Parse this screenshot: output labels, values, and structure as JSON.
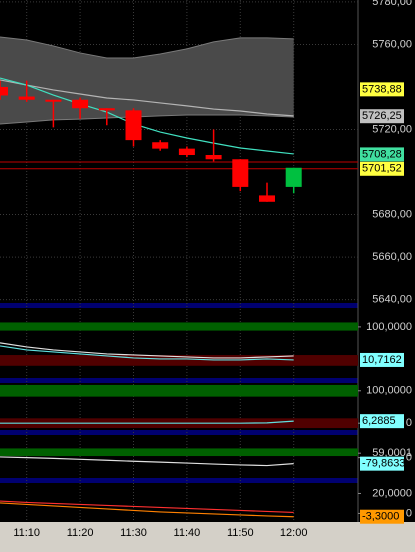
{
  "chart_data": [
    {
      "type": "candlestick",
      "categories": [
        null,
        "11:10",
        null,
        "11:20",
        null,
        "11:30",
        null,
        "11:40",
        null,
        "11:50",
        null,
        "12:00"
      ],
      "open": [
        5740,
        5735.5,
        5734,
        5734,
        5730,
        5729,
        5714,
        5711,
        5708,
        5706,
        5689,
        5693
      ],
      "high": [
        5743,
        5743,
        5734,
        5735,
        5730,
        5730,
        5715,
        5712,
        5720,
        5706,
        5695,
        5702
      ],
      "low": [
        5734,
        5733,
        5721,
        5725,
        5722,
        5712,
        5710,
        5707,
        5705,
        5691,
        5686,
        5690
      ],
      "close": [
        5736,
        5734,
        5733.5,
        5730,
        5729,
        5715,
        5711,
        5708,
        5706,
        5693,
        5686,
        5702
      ],
      "up_color": "#00c040",
      "down_color": "#ff0000",
      "ylim": [
        5638.4,
        5780.9
      ],
      "yticks": [
        {
          "value": 5780,
          "label": "5780,00"
        },
        {
          "value": 5760,
          "label": "5760,00"
        },
        {
          "value": 5720,
          "label": "5720,00"
        },
        {
          "value": 5680,
          "label": "5680,00"
        },
        {
          "value": 5660,
          "label": "5660,00"
        },
        {
          "value": 5640,
          "label": "5640,00"
        }
      ],
      "grid": true,
      "band": {
        "color": "#4a4a4a",
        "edge_color": "#7a7a7a",
        "upper": [
          5763.5,
          5762.1,
          5759.3,
          5756.0,
          5753.6,
          5753.6,
          5755.5,
          5757.9,
          5761.2,
          5763.1,
          5763.1,
          5762.6
        ],
        "lower": [
          5722.6,
          5723.5,
          5724.5,
          5724.9,
          5725.4,
          5725.9,
          5726.4,
          5726.8,
          5726.8,
          5726.8,
          5726.4,
          5725.9
        ]
      },
      "series": [
        {
          "color": "#b4b4b4",
          "values": [
            5743.3,
            5740.9,
            5738.6,
            5736.7,
            5734.8,
            5733.9,
            5732.5,
            5731.1,
            5729.6,
            5728.7,
            5727.3,
            5726.4
          ]
        },
        {
          "color": "#40e0c0",
          "values": [
            5744.2,
            5740.9,
            5736.2,
            5732.0,
            5728.2,
            5722.6,
            5718.8,
            5716.0,
            5713.6,
            5711.3,
            5709.9,
            5708.5
          ]
        }
      ],
      "levels": [
        {
          "value": 5704.7,
          "color": "#c00000"
        },
        {
          "value": 5701.52,
          "color": "#c00000",
          "label": "5701,52",
          "label_color": "#ffff40"
        },
        {
          "value": 5738.88,
          "label": "5738,88",
          "label_color": "#ffff40"
        },
        {
          "value": 5726.25,
          "label": "5726,25",
          "label_color": "#c0c0c0"
        },
        {
          "value": 5708.28,
          "label": "5708,28",
          "label_color": "#40e0a0"
        }
      ]
    },
    {
      "type": "line",
      "ylim": [
        -38,
        151
      ],
      "yticks": [
        {
          "value": 100,
          "label": "100,0000"
        }
      ],
      "bands": [
        {
          "from": 90,
          "to": 112,
          "color": "#006000"
        },
        {
          "from": -5,
          "to": 24,
          "color": "#500000"
        }
      ],
      "series": [
        {
          "color": "#e0e0e0",
          "values": [
            56.8,
            45.9,
            37.8,
            32.4,
            27.0,
            24.3,
            21.6,
            18.9,
            16.2,
            16.2,
            18.9,
            21.6
          ]
        },
        {
          "color": "#60e0e0",
          "values": [
            48.6,
            37.8,
            32.4,
            27.0,
            21.6,
            16.2,
            13.5,
            13.5,
            10.8,
            10.8,
            13.5,
            10.7162
          ]
        }
      ],
      "levels": [
        {
          "value": 10.7162,
          "label": "10,7162",
          "label_color": "#80ffff"
        }
      ]
    },
    {
      "type": "line",
      "ylim": [
        -21,
        124
      ],
      "yticks": [
        {
          "value": 100,
          "label": "100,0000"
        },
        0
      ],
      "bands": [
        {
          "from": 82,
          "to": 118,
          "color": "#006000"
        },
        {
          "from": -15,
          "to": 15,
          "color": "#500000"
        }
      ],
      "series": [
        {
          "color": "#60e0e0",
          "values": [
            0,
            0,
            0,
            0,
            0,
            0,
            0,
            0,
            0,
            0,
            1,
            6.2885
          ]
        }
      ],
      "levels": [
        {
          "value": 6.2885,
          "label": "6,2885",
          "label_color": "#80ffff"
        }
      ]
    },
    {
      "type": "line",
      "ylim": [
        -270,
        300
      ],
      "yticks": [
        {
          "value": 59.0001,
          "label": "59,0001"
        },
        0
      ],
      "bands": [
        {
          "from": 21,
          "to": 122,
          "color": "#006000"
        }
      ],
      "series": [
        {
          "color": "#e0e0e0",
          "values": [
            9,
            0,
            -10,
            -22,
            -35,
            -48,
            -60,
            -72,
            -85,
            -97,
            -105,
            -79.8633
          ]
        }
      ],
      "levels": [
        {
          "value": -79.8633,
          "label": "-79,8633",
          "label_color": "#80ffff"
        }
      ]
    },
    {
      "type": "line",
      "ylim": [
        -8.6,
        30.5
      ],
      "yticks": [
        {
          "value": 20,
          "label": "20,0000"
        },
        0
      ],
      "bands": [],
      "series": [
        {
          "color": "#ff3030",
          "values": [
            12.4,
            11,
            10,
            9,
            8,
            7,
            6,
            5,
            4,
            3,
            2,
            1
          ]
        },
        {
          "color": "#ff8000",
          "values": [
            10.5,
            9,
            7.5,
            6,
            4.5,
            3,
            1.5,
            0.5,
            -0.5,
            -1.5,
            -2.5,
            -3.3
          ]
        }
      ],
      "levels": [
        {
          "value": -3.3,
          "label": "-3,3000",
          "label_color": "#ff9900"
        }
      ]
    }
  ]
}
